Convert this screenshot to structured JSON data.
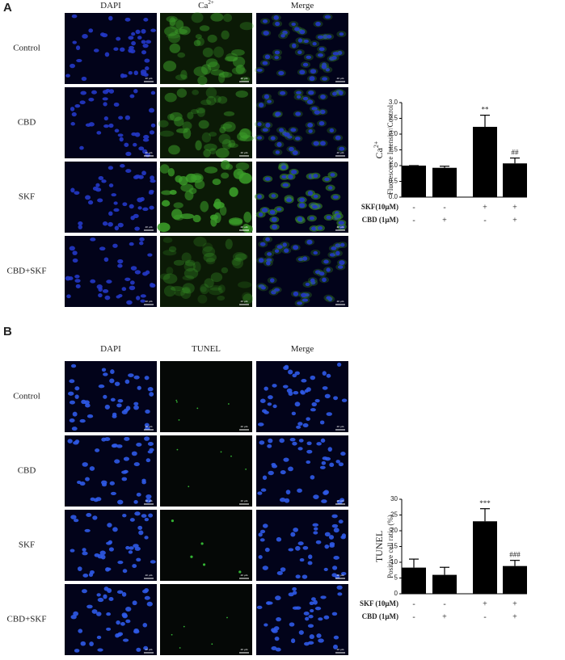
{
  "figure": {
    "panels": [
      {
        "label": "A",
        "columns": [
          {
            "text": "DAPI"
          },
          {
            "text": "Ca",
            "sup": "2+"
          },
          {
            "text": "Merge"
          }
        ],
        "rows": [
          "Control",
          "CBD",
          "SKF",
          "CBD+SKF"
        ]
      },
      {
        "label": "B",
        "columns": [
          {
            "text": "DAPI"
          },
          {
            "text": "TUNEL"
          },
          {
            "text": "Merge"
          }
        ],
        "rows": [
          "Control",
          "CBD",
          "SKF",
          "CBD+SKF"
        ]
      }
    ],
    "scale_bar": "40 μm"
  },
  "chart_data": [
    {
      "type": "bar",
      "ylabel": {
        "text": "Ca",
        "sup": "2+"
      },
      "ylabel2": "Fluorescence Intensity/Control",
      "values": [
        1.0,
        0.93,
        2.23,
        1.07
      ],
      "errors": [
        0.0,
        0.05,
        0.37,
        0.17
      ],
      "value_annotations": [
        null,
        null,
        "**",
        "##"
      ],
      "color": "#000000",
      "ylim": [
        0,
        3
      ],
      "yticks": [
        {
          "value": 0,
          "label": "0.0"
        },
        0.5,
        {
          "value": 1,
          "label": "1.0"
        },
        1.5,
        {
          "value": 2,
          "label": "2.0"
        },
        2.5,
        {
          "value": 3,
          "label": "3.0"
        }
      ],
      "treatments": [
        {
          "name": "SKF(10μM)",
          "signs": [
            "-",
            "-",
            "+",
            "+"
          ]
        },
        {
          "name": "CBD (1μM)",
          "signs": [
            "-",
            "+",
            "-",
            "+"
          ]
        }
      ]
    },
    {
      "type": "bar",
      "ylabel": {
        "text": "TUNEL"
      },
      "ylabel2": "Positive cell ratio (%)",
      "values": [
        8.3,
        6.0,
        23.0,
        8.8
      ],
      "errors": [
        2.7,
        2.4,
        4.0,
        1.8
      ],
      "value_annotations": [
        null,
        null,
        "***",
        "###"
      ],
      "color": "#000000",
      "ylim": [
        0,
        30
      ],
      "yticks": [
        0,
        5,
        10,
        15,
        20,
        25,
        30
      ],
      "treatments": [
        {
          "name": "SKF (10μM)",
          "signs": [
            "-",
            "-",
            "+",
            "+"
          ]
        },
        {
          "name": "CBD (1μM)",
          "signs": [
            "-",
            "+",
            "-",
            "+"
          ]
        }
      ]
    }
  ]
}
